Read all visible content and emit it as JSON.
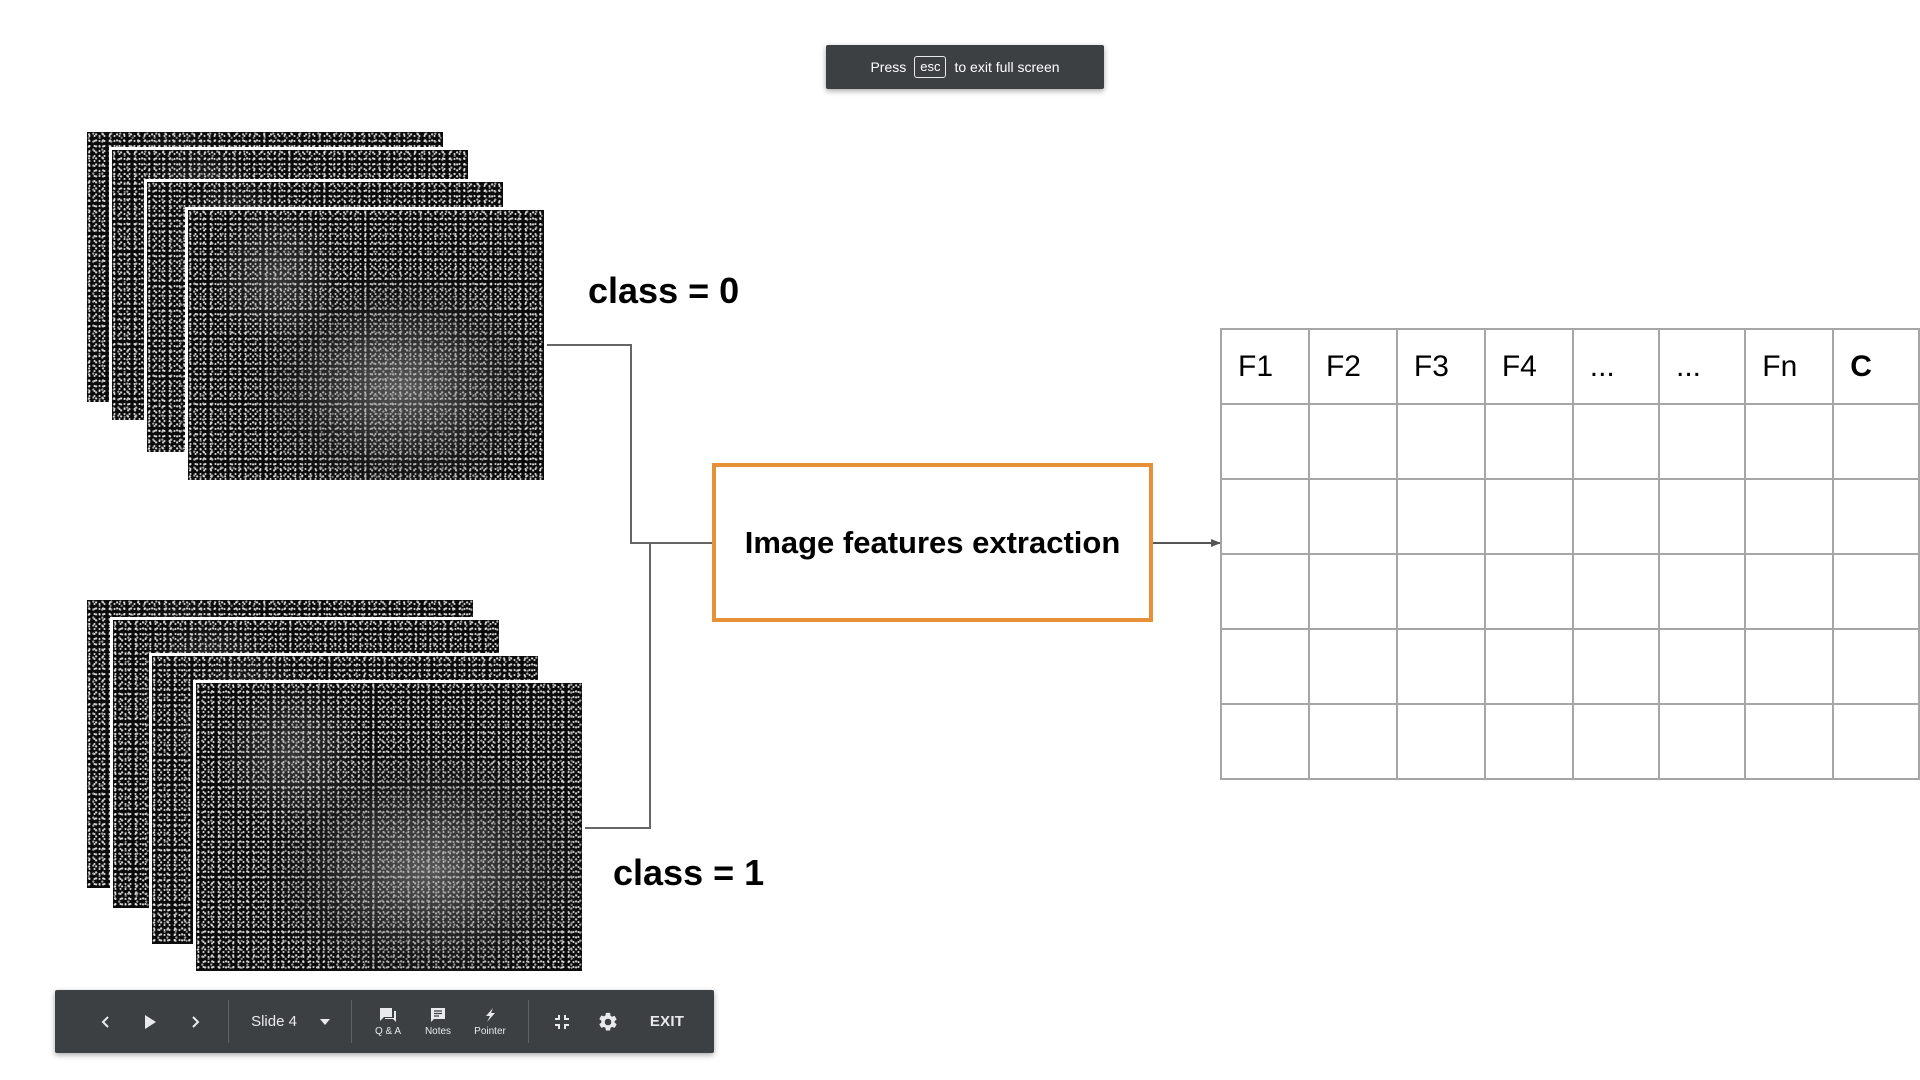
{
  "toast": {
    "before": "Press",
    "key": "esc",
    "after": "to exit full screen"
  },
  "slide": {
    "class0_label": "class = 0",
    "class1_label": "class = 1",
    "process_label": "Image features extraction",
    "table": {
      "headers": [
        "F1",
        "F2",
        "F3",
        "F4",
        "...",
        "...",
        "Fn",
        "C"
      ],
      "rows": [
        [
          "",
          "",
          "",
          "",
          "",
          "",
          "",
          ""
        ],
        [
          "",
          "",
          "",
          "",
          "",
          "",
          "",
          ""
        ],
        [
          "",
          "",
          "",
          "",
          "",
          "",
          "",
          ""
        ],
        [
          "",
          "",
          "",
          "",
          "",
          "",
          "",
          ""
        ],
        [
          "",
          "",
          "",
          "",
          "",
          "",
          "",
          ""
        ]
      ]
    }
  },
  "colors": {
    "accent_orange": "#e69138",
    "toolbar_bg": "#3c4043",
    "grid_line": "#a6a6a6"
  },
  "toolbar": {
    "slide_selector": "Slide 4",
    "qa_label": "Q & A",
    "notes_label": "Notes",
    "pointer_label": "Pointer",
    "exit_label": "EXIT",
    "icons": [
      "chevron-left-icon",
      "play-icon",
      "chevron-right-icon",
      "caret-down-icon",
      "qa-icon",
      "notes-icon",
      "pointer-icon",
      "exit-fullscreen-icon",
      "gear-icon"
    ]
  }
}
